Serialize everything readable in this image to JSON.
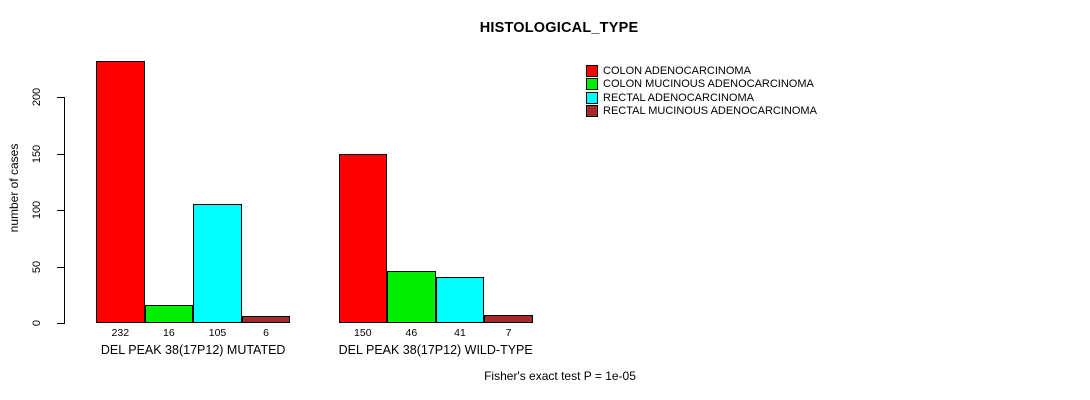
{
  "chart_data": {
    "type": "bar",
    "title": "HISTOLOGICAL_TYPE",
    "xlabel": "",
    "ylabel": "number of cases",
    "yticks": [
      0,
      50,
      100,
      150,
      200
    ],
    "ylim": [
      0,
      232
    ],
    "grid": false,
    "legend_position": "top-right",
    "categories": [
      "DEL PEAK 38(17P12) MUTATED",
      "DEL PEAK 38(17P12) WILD-TYPE"
    ],
    "series": [
      {
        "name": "COLON ADENOCARCINOMA",
        "color": "#FF0000",
        "values": [
          232,
          150
        ]
      },
      {
        "name": "COLON MUCINOUS ADENOCARCINOMA",
        "color": "#00EE00",
        "values": [
          16,
          46
        ]
      },
      {
        "name": "RECTAL ADENOCARCINOMA",
        "color": "#00FFFF",
        "values": [
          105,
          41
        ]
      },
      {
        "name": "RECTAL MUCINOUS ADENOCARCINOMA",
        "color": "#A52A2A",
        "values": [
          6,
          7
        ]
      }
    ],
    "bar_value_labels": [
      [
        232,
        16,
        105,
        6
      ],
      [
        150,
        46,
        41,
        7
      ]
    ],
    "annotation": "Fisher's exact test P = 1e-05"
  }
}
